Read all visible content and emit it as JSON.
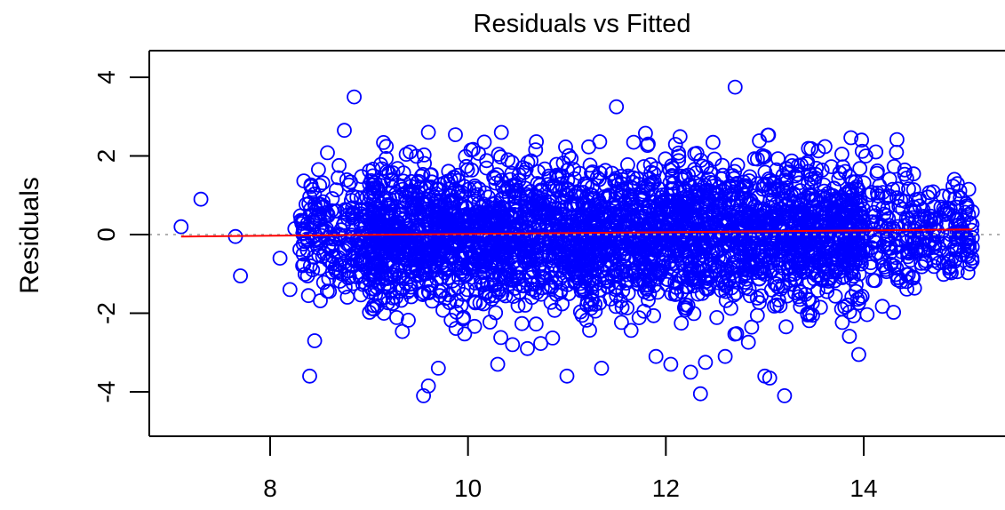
{
  "chart_data": {
    "type": "scatter",
    "title": "Residuals vs Fitted",
    "xlabel": "",
    "ylabel": "Residuals",
    "xlim": [
      6.9,
      15.5
    ],
    "ylim": [
      -5.3,
      4.8
    ],
    "x_ticks": [
      8,
      10,
      12,
      14
    ],
    "x_tick_labels": [
      "8",
      "10",
      "12",
      "14"
    ],
    "y_ticks": [
      -4,
      -2,
      0,
      2,
      4
    ],
    "y_tick_labels": [
      "-4",
      "-2",
      "0",
      "2",
      "4"
    ],
    "grid": false,
    "reference_line": {
      "y": 0,
      "style": "dotted",
      "color": "#b0b0b0"
    },
    "fit_line": {
      "x": [
        7.1,
        15.1
      ],
      "y": [
        -0.05,
        0.13
      ],
      "color": "#ff0000"
    },
    "marker": {
      "shape": "open-circle",
      "color": "#0000ff"
    },
    "points_outliers": {
      "x": [
        7.1,
        7.3,
        7.65,
        7.7,
        8.1,
        8.2,
        8.25,
        8.4,
        8.45,
        8.5,
        8.75,
        8.85,
        9.55,
        9.6,
        9.6,
        9.7,
        10.3,
        10.45,
        10.6,
        11.0,
        11.35,
        11.5,
        11.9,
        12.05,
        12.25,
        12.35,
        12.4,
        12.6,
        12.7,
        13.0,
        13.05,
        13.2,
        13.95
      ],
      "y": [
        0.2,
        0.9,
        -0.05,
        -1.05,
        -0.6,
        -1.4,
        0.15,
        -3.6,
        -2.7,
        1.25,
        2.65,
        3.5,
        -4.1,
        -3.85,
        2.6,
        -3.4,
        -3.3,
        -2.8,
        -2.9,
        -3.6,
        -3.4,
        3.25,
        -3.1,
        -3.3,
        -3.5,
        -4.05,
        -3.25,
        -3.1,
        3.75,
        -3.6,
        -3.65,
        -4.1,
        -3.05
      ]
    },
    "points_bulk": {
      "count": 3400,
      "x_range": [
        8.3,
        15.1
      ],
      "y_spread_sd": 0.9,
      "note_seed": 20240607
    }
  }
}
